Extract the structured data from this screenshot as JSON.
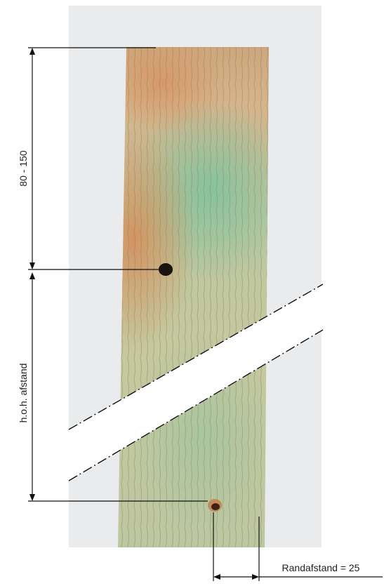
{
  "labels": {
    "top_distance": "80 - 150",
    "center_distance": "h.o.h. afstand",
    "edge_distance": "Randafstand = 25"
  },
  "colors": {
    "background_card": "#e8eaec",
    "wood_base": "#b9c59a",
    "wood_green_stain": "#8fc2a0",
    "wood_orange_stain": "#d79a68",
    "hole": "#1a120c",
    "line": "#111111"
  }
}
